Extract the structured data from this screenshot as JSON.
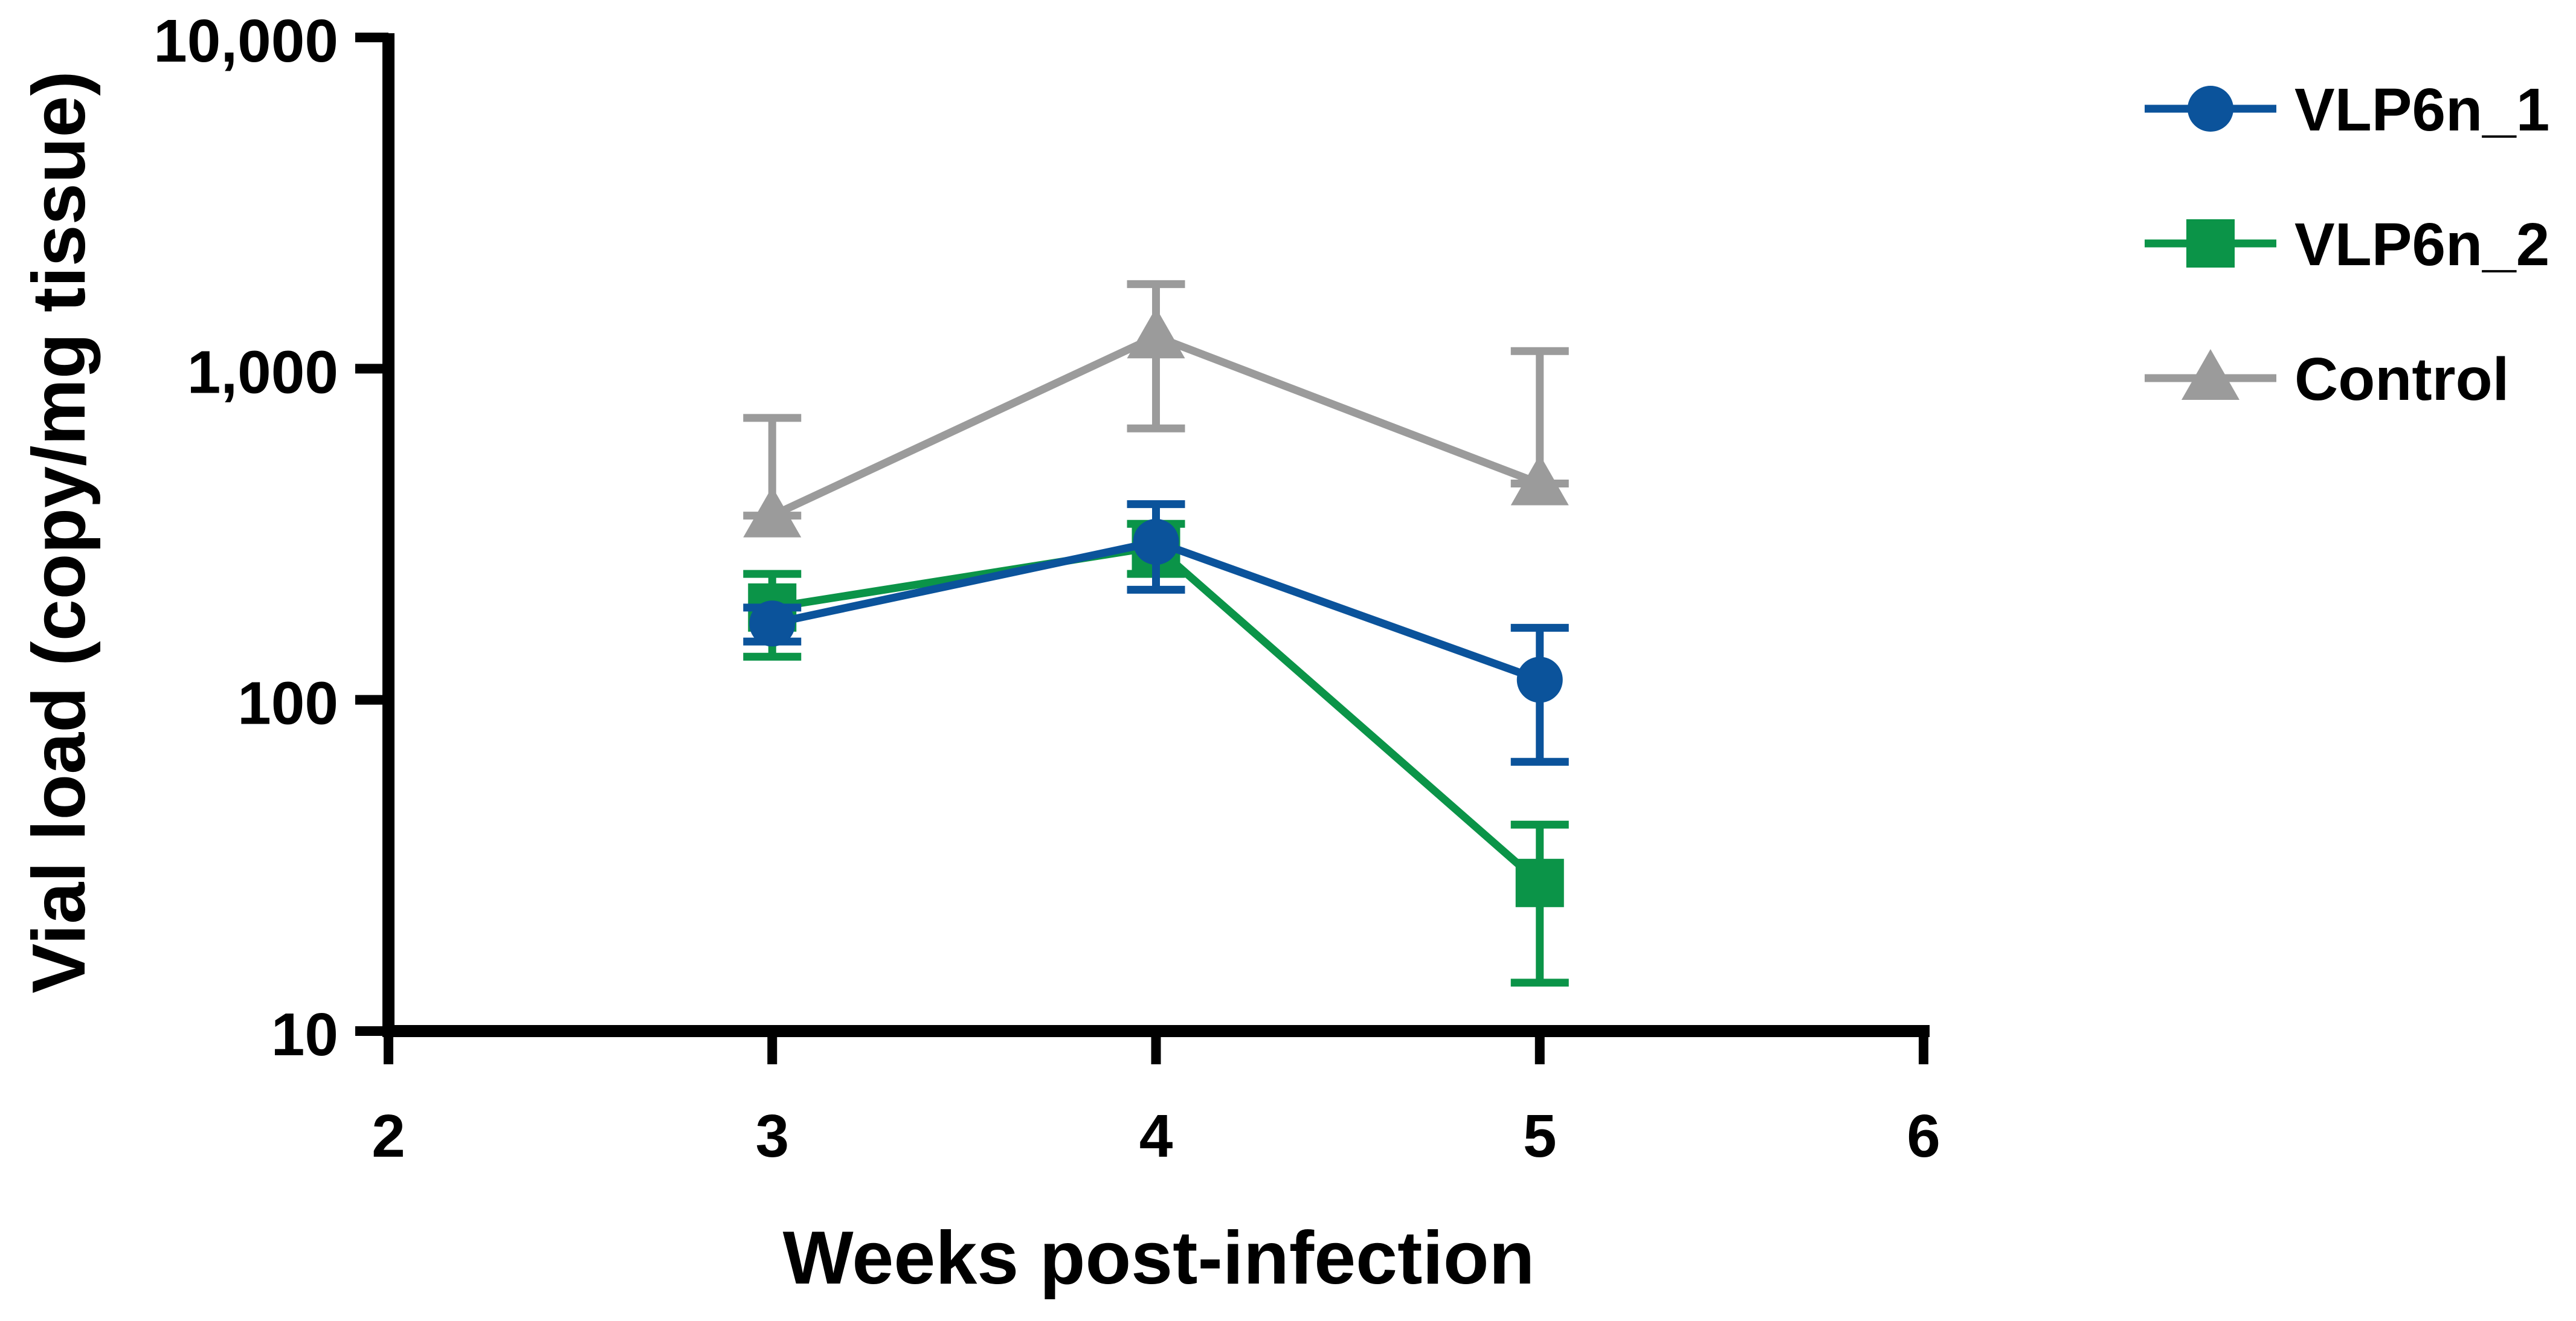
{
  "chart_data": {
    "type": "line",
    "title": "",
    "xlabel": "Weeks post-infection",
    "ylabel": "Vial load (copy/mg tissue)",
    "xlim": [
      2,
      6
    ],
    "ylim": [
      10,
      10000
    ],
    "y_scale": "log",
    "x_ticks": [
      2,
      3,
      4,
      5,
      6
    ],
    "x_tick_labels": [
      "2",
      "3",
      "4",
      "5",
      "6"
    ],
    "y_ticks": [
      10,
      100,
      1000,
      10000
    ],
    "y_tick_labels": [
      "10",
      "100",
      "1,000",
      "10,000"
    ],
    "grid": false,
    "legend_position": "right",
    "series": [
      {
        "name": "VLP6n_1",
        "color": "#0B539B",
        "marker": "circle",
        "x": [
          3,
          4,
          5
        ],
        "y": [
          170,
          300,
          115
        ],
        "err_upper": [
          190,
          390,
          165
        ],
        "err_lower": [
          150,
          215,
          65
        ]
      },
      {
        "name": "VLP6n_2",
        "color": "#0B9448",
        "marker": "square",
        "x": [
          3,
          4,
          5
        ],
        "y": [
          190,
          290,
          28
        ],
        "err_upper": [
          240,
          340,
          42
        ],
        "err_lower": [
          135,
          240,
          14
        ]
      },
      {
        "name": "Control",
        "color": "#9B9B9B",
        "marker": "triangle",
        "x": [
          3,
          4,
          5
        ],
        "y": [
          360,
          1250,
          450
        ],
        "err_upper": [
          710,
          1800,
          1130
        ],
        "err_lower": [
          360,
          660,
          450
        ]
      }
    ]
  }
}
